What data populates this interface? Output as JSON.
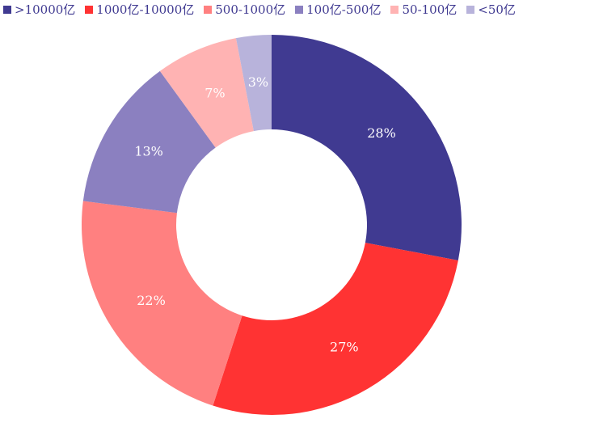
{
  "chart_data": {
    "type": "pie",
    "donut": true,
    "title": "",
    "legend_position": "top-left",
    "categories": [
      ">10000亿",
      "1000亿-10000亿",
      "500-1000亿",
      "100亿-500亿",
      "50-100亿",
      "<50亿"
    ],
    "values": [
      28,
      27,
      22,
      13,
      7,
      3
    ],
    "value_labels": [
      "28%",
      "27%",
      "22%",
      "13%",
      "7%",
      "3%"
    ],
    "colors": [
      "#403A91",
      "#FF3333",
      "#FF8080",
      "#8B80C0",
      "#FFB3B3",
      "#B8B3DB"
    ],
    "label_color": "#FFFFFF",
    "legend_text_color": "#403A91"
  }
}
